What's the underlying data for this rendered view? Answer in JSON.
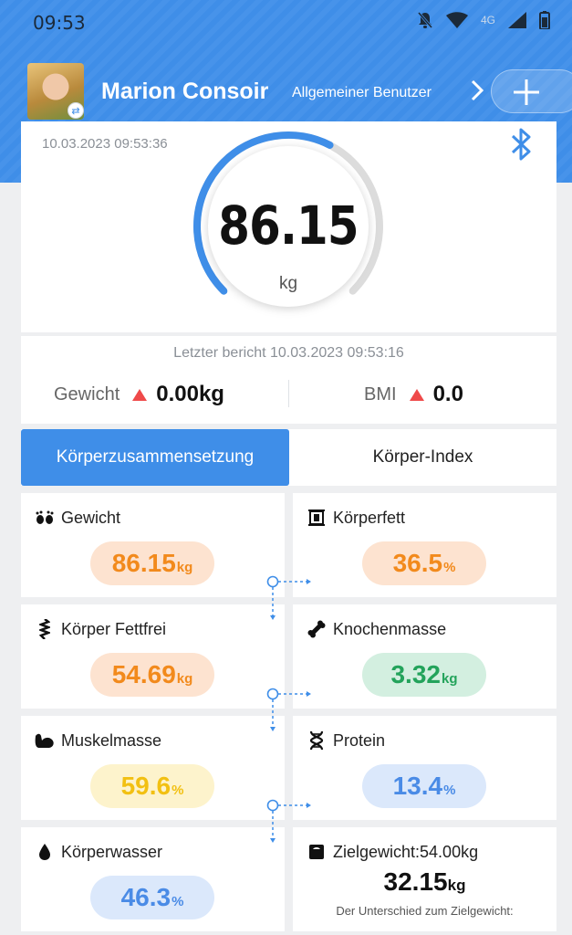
{
  "status_bar": {
    "time": "09:53",
    "network": "4G"
  },
  "profile": {
    "name": "Marion Consoir",
    "role": "Allgemeiner Benutzer"
  },
  "weight_card": {
    "timestamp": "10.03.2023 09:53:36",
    "value": "86.15",
    "unit": "kg",
    "gauge_fill": 0.6
  },
  "report": {
    "last_report": "Letzter bericht 10.03.2023 09:53:16",
    "weight_label": "Gewicht",
    "weight_change": "0.00kg",
    "bmi_label": "BMI",
    "bmi_change": "0.0"
  },
  "tabs": [
    {
      "label": "Körperzusammensetzung"
    },
    {
      "label": "Körper-Index"
    }
  ],
  "metrics": [
    {
      "label": "Gewicht",
      "value": "86.15",
      "unit": "kg",
      "icon": "footprints-icon",
      "color": "#f28a1c"
    },
    {
      "label": "Körperfett",
      "value": "36.5",
      "unit": "%",
      "icon": "body-fat-icon",
      "color": "#f28a1c"
    },
    {
      "label": "Körper Fettfrei",
      "value": "54.69",
      "unit": "kg",
      "icon": "spine-icon",
      "color": "#f28a1c"
    },
    {
      "label": "Knochenmasse",
      "value": "3.32",
      "unit": "kg",
      "icon": "bone-icon",
      "color": "#23a35b"
    },
    {
      "label": "Muskelmasse",
      "value": "59.6",
      "unit": "%",
      "icon": "muscle-icon",
      "color": "#f2c012"
    },
    {
      "label": "Protein",
      "value": "13.4",
      "unit": "%",
      "icon": "dna-icon",
      "color": "#4a8be6"
    },
    {
      "label": "Körperwasser",
      "value": "46.3",
      "unit": "%",
      "icon": "water-drop-icon",
      "color": "#4a8be6"
    }
  ],
  "goal": {
    "label": "Zielgewicht:54.00kg",
    "value": "32.15",
    "unit": "kg",
    "note": "Der Unterschied zum Zielgewicht:"
  }
}
